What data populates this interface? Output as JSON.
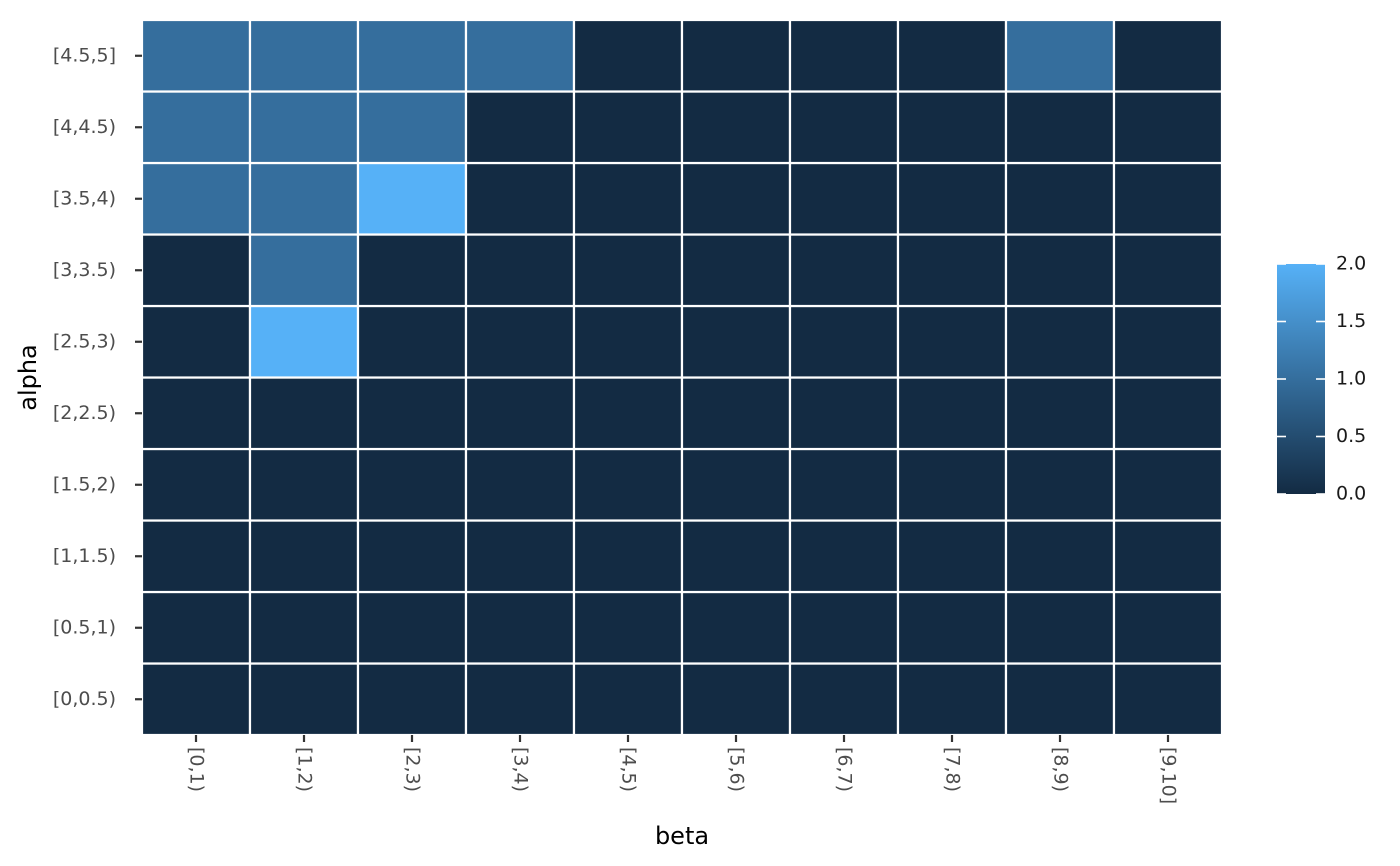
{
  "chart_data": {
    "type": "heatmap",
    "title": "",
    "xlabel": "beta",
    "ylabel": "alpha",
    "x_categories": [
      "[0,1)",
      "[1,2)",
      "[2,3)",
      "[3,4)",
      "[4,5)",
      "[5,6)",
      "[6,7)",
      "[7,8)",
      "[8,9)",
      "[9,10]"
    ],
    "y_categories": [
      "[0,0.5)",
      "[0.5,1)",
      "[1,1.5)",
      "[1.5,2)",
      "[2,2.5)",
      "[2.5,3)",
      "[3,3.5)",
      "[3.5,4)",
      "[4,4.5)",
      "[4.5,5]"
    ],
    "values": [
      [
        0,
        0,
        0,
        0,
        0,
        0,
        0,
        0,
        0,
        0
      ],
      [
        0,
        0,
        0,
        0,
        0,
        0,
        0,
        0,
        0,
        0
      ],
      [
        0,
        0,
        0,
        0,
        0,
        0,
        0,
        0,
        0,
        0
      ],
      [
        0,
        0,
        0,
        0,
        0,
        0,
        0,
        0,
        0,
        0
      ],
      [
        0,
        0,
        0,
        0,
        0,
        0,
        0,
        0,
        0,
        0
      ],
      [
        0,
        2,
        0,
        0,
        0,
        0,
        0,
        0,
        0,
        0
      ],
      [
        0,
        1,
        0,
        0,
        0,
        0,
        0,
        0,
        0,
        0
      ],
      [
        1,
        1,
        2,
        0,
        0,
        0,
        0,
        0,
        0,
        0
      ],
      [
        1,
        1,
        1,
        0,
        0,
        0,
        0,
        0,
        0,
        0
      ],
      [
        1,
        1,
        1,
        1,
        0,
        0,
        0,
        0,
        1,
        0
      ]
    ],
    "color_scale": {
      "low": "#132b43",
      "high": "#56b1f7",
      "limits": [
        0,
        2
      ]
    },
    "legend": {
      "position": "right",
      "ticks": [
        0,
        0.5,
        1,
        1.5,
        2
      ],
      "tick_labels": [
        "0.0",
        "0.5",
        "1.0",
        "1.5",
        "2.0"
      ]
    },
    "panel_background": "#ebebeb",
    "tile_border": "#ffffff",
    "grid": true
  }
}
